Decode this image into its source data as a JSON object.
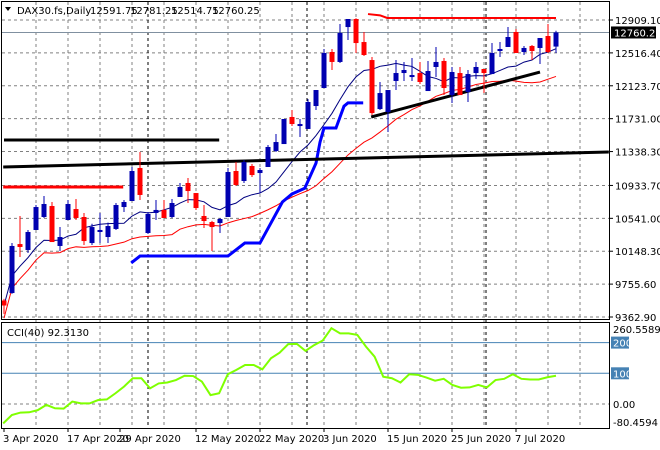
{
  "header": {
    "symbol": "DAX30.fs,Daily",
    "open": "12591.75",
    "high": "12781.25",
    "low": "12514.75",
    "close": "12760.25"
  },
  "colors": {
    "bull": "#0000b0",
    "bear": "#ff0000",
    "sma_fast": "#000080",
    "sma_slow": "#ff0000",
    "step_blue": "#0000ff",
    "step_red": "#ff0000",
    "cci": "#7fff00",
    "level": "#4682b4",
    "grid": "#808080"
  },
  "chart_data": [
    {
      "type": "candlestick",
      "title": "DAX30.fs,Daily",
      "ylim": [
        9362.9,
        12909.1
      ],
      "y_ticks": [
        "12909.10",
        "12516.40",
        "12123.70",
        "11731.00",
        "11338.30",
        "10933.70",
        "10541.00",
        "10148.30",
        "9755.60",
        "9362.90"
      ],
      "y_tick_values": [
        12909.1,
        12516.4,
        12123.7,
        11731.0,
        11338.3,
        10933.7,
        10541.0,
        10148.3,
        9755.6,
        9362.9
      ],
      "current_price_label": "12760.25",
      "current_price": 12760.25,
      "x_ticks": [
        {
          "label": "3 Apr 2020",
          "index": 0
        },
        {
          "label": "17 Apr 2020",
          "index": 8
        },
        {
          "label": "29 Apr 2020",
          "index": 14.5
        },
        {
          "label": "12 May 2020",
          "index": 24
        },
        {
          "label": "22 May 2020",
          "index": 32
        },
        {
          "label": "3 Jun 2020",
          "index": 40
        },
        {
          "label": "15 Jun 2020",
          "index": 48
        },
        {
          "label": "25 Jun 2020",
          "index": 56
        },
        {
          "label": "7 Jul 2020",
          "index": 64
        }
      ],
      "ohlc": [
        [
          9560,
          9580,
          9400,
          9500
        ],
        [
          9649,
          10246,
          9640,
          10211
        ],
        [
          10234,
          10569,
          10079,
          10199
        ],
        [
          10163,
          10402,
          10127,
          10378
        ],
        [
          10402,
          10700,
          10402,
          10676
        ],
        [
          10557,
          10808,
          10545,
          10712
        ],
        [
          10688,
          10736,
          10258,
          10258
        ],
        [
          10211,
          10437,
          10151,
          10318
        ],
        [
          10521,
          10760,
          10521,
          10712
        ],
        [
          10652,
          10772,
          10521,
          10545
        ],
        [
          10557,
          10605,
          10222,
          10270
        ],
        [
          10246,
          10477,
          10222,
          10437
        ],
        [
          10378,
          10605,
          10246,
          10402
        ],
        [
          10318,
          10489,
          10246,
          10449
        ],
        [
          10414,
          10724,
          10402,
          10700
        ],
        [
          10676,
          10760,
          10617,
          10736
        ],
        [
          10748,
          11154,
          10748,
          11106
        ],
        [
          11142,
          11333,
          10760,
          10820
        ],
        [
          10366,
          10617,
          10354,
          10593
        ],
        [
          10605,
          10760,
          10521,
          10641
        ],
        [
          10641,
          10760,
          10545,
          10545
        ],
        [
          10557,
          10772,
          10545,
          10724
        ],
        [
          10796,
          10963,
          10796,
          10915
        ],
        [
          10963,
          11023,
          10724,
          10867
        ],
        [
          10843,
          10843,
          10640,
          10664
        ],
        [
          10569,
          10700,
          10425,
          10509
        ],
        [
          10497,
          10510,
          10151,
          10437
        ],
        [
          10485,
          10545,
          10366,
          10533
        ],
        [
          10557,
          11142,
          10557,
          11094
        ],
        [
          11106,
          11214,
          10927,
          10939
        ],
        [
          10987,
          11238,
          10963,
          11214
        ],
        [
          11166,
          11190,
          11034,
          11058
        ],
        [
          11082,
          11142,
          10843,
          11118
        ],
        [
          11154,
          11417,
          11154,
          11393
        ],
        [
          11345,
          11548,
          11333,
          11452
        ],
        [
          11428,
          11727,
          11428,
          11727
        ],
        [
          11751,
          11834,
          11643,
          11667
        ],
        [
          11643,
          11727,
          11512,
          11667
        ],
        [
          11608,
          11965,
          11608,
          11930
        ],
        [
          11882,
          12073,
          11834,
          12073
        ],
        [
          12097,
          12563,
          12097,
          12515
        ],
        [
          12527,
          12563,
          12312,
          12408
        ],
        [
          12408,
          12861,
          12396,
          12754
        ],
        [
          12825,
          12921,
          12670,
          12921
        ],
        [
          12921,
          12930,
          12515,
          12634
        ],
        [
          12646,
          12766,
          12479,
          12491
        ],
        [
          12431,
          12467,
          11775,
          11798
        ],
        [
          11846,
          12169,
          11834,
          12037
        ],
        [
          11810,
          12073,
          11572,
          12073
        ],
        [
          12181,
          12431,
          12073,
          12276
        ],
        [
          12276,
          12408,
          12181,
          12312
        ],
        [
          12228,
          12455,
          12181,
          12252
        ],
        [
          12276,
          12408,
          12145,
          12169
        ],
        [
          12061,
          12420,
          12061,
          12300
        ],
        [
          12348,
          12587,
          12228,
          12408
        ],
        [
          12420,
          12455,
          12013,
          12097
        ],
        [
          12013,
          12348,
          11918,
          12288
        ],
        [
          12276,
          12348,
          12013,
          12013
        ],
        [
          12049,
          12312,
          11930,
          12264
        ],
        [
          12276,
          12408,
          12205,
          12348
        ],
        [
          12324,
          12324,
          12037,
          12276
        ],
        [
          12264,
          12634,
          12264,
          12515
        ],
        [
          12539,
          12646,
          12467,
          12563
        ],
        [
          12587,
          12825,
          12587,
          12706
        ],
        [
          12766,
          12802,
          12515,
          12515
        ],
        [
          12527,
          12599,
          12491,
          12575
        ],
        [
          12599,
          12611,
          12431,
          12539
        ],
        [
          12575,
          12694,
          12384,
          12694
        ],
        [
          12718,
          12861,
          12515,
          12527
        ],
        [
          12591.75,
          12781.25,
          12514.75,
          12760.25
        ]
      ],
      "sma_fast_period": 10,
      "sma_slow_period": 22,
      "step_blue": [
        [
          15.9,
          10008
        ],
        [
          17,
          10091
        ],
        [
          28,
          10091
        ],
        [
          30.1,
          10246
        ],
        [
          32,
          10246
        ],
        [
          34.8,
          10736
        ],
        [
          36,
          10832
        ],
        [
          37.6,
          10900
        ],
        [
          39,
          11200
        ],
        [
          39.5,
          11450
        ],
        [
          40,
          11620
        ],
        [
          41.5,
          11620
        ],
        [
          42.5,
          11880
        ],
        [
          43,
          11920
        ],
        [
          44.9,
          11920
        ]
      ],
      "step_red": [
        [
          45.5,
          12980
        ],
        [
          47,
          12965
        ],
        [
          47.9,
          12933
        ],
        [
          69,
          12933
        ]
      ],
      "hline_red": [
        [
          -0.1,
          10915
        ],
        [
          14.9,
          10915
        ]
      ],
      "hline_black": [
        [
          0,
          11476
        ],
        [
          26.9,
          11476
        ]
      ],
      "trend_long": [
        [
          -0.1,
          11154
        ],
        [
          75.6,
          11333
        ]
      ],
      "trend_short": [
        [
          45.9,
          11751
        ],
        [
          67,
          12288
        ]
      ]
    },
    {
      "type": "line",
      "title": "CCI(40) 92.3130",
      "label": "CCI(40) 92.3130",
      "ylim": [
        -80.4594,
        260.5589
      ],
      "y_ticks": [
        "260.5589",
        "200",
        "100",
        "0.00",
        "-80.4594"
      ],
      "levels": [
        200,
        100
      ],
      "values": [
        -63,
        -36,
        -28,
        -27,
        -20,
        -3,
        -14,
        -15,
        8,
        2,
        2,
        13,
        15,
        35,
        57,
        84,
        84,
        51,
        67,
        70,
        78,
        92,
        91,
        73,
        29,
        35,
        97,
        111,
        127,
        127,
        113,
        149,
        167,
        195,
        196,
        173,
        192,
        207,
        247,
        230,
        230,
        225,
        187,
        154,
        89,
        84,
        70,
        97,
        95,
        86,
        76,
        82,
        62,
        53,
        54,
        62,
        54,
        78,
        82,
        97,
        82,
        80,
        80,
        87,
        92
      ]
    }
  ]
}
